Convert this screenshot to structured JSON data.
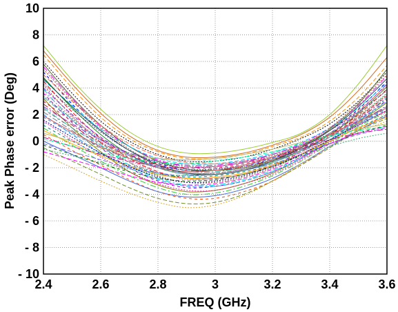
{
  "chart_data": {
    "type": "line",
    "title": "",
    "xlabel": "FREQ (GHz)",
    "ylabel": "Peak Phase error (Deg)",
    "xlim": [
      2.4,
      3.6
    ],
    "ylim": [
      -10,
      10
    ],
    "xticks": [
      "2.4",
      "2.6",
      "2.8",
      "3",
      "3.2",
      "3.4",
      "3.6"
    ],
    "yticks": [
      "10",
      "8",
      "6",
      "4",
      "2",
      "0",
      "- 2",
      "- 4",
      "- 6",
      "- 8",
      "- 10"
    ],
    "grid": "dotted",
    "legend": "none",
    "note": "approximately 50 overlapping unlabeled traces; values estimated",
    "x": [
      2.4,
      2.5,
      2.6,
      2.7,
      2.8,
      2.9,
      3.0,
      3.1,
      3.2,
      3.3,
      3.4,
      3.5,
      3.6
    ],
    "series": [
      {
        "color": "#9acd32",
        "values": [
          7.2,
          4.6,
          2.4,
          0.7,
          -0.4,
          -0.9,
          -0.9,
          -0.6,
          -0.1,
          0.6,
          2.0,
          4.3,
          7.2
        ]
      },
      {
        "color": "#ff8c00",
        "values": [
          6.5,
          4.0,
          1.8,
          0.2,
          -0.8,
          -1.3,
          -1.3,
          -1.0,
          -0.4,
          0.3,
          1.5,
          3.3,
          5.7
        ]
      },
      {
        "color": "#000000",
        "values": [
          6.0,
          3.6,
          1.5,
          0.0,
          -1.0,
          -1.5,
          -1.5,
          -1.2,
          -0.6,
          0.2,
          1.3,
          3.0,
          5.2
        ]
      },
      {
        "color": "#ff00ff",
        "values": [
          5.6,
          3.2,
          1.1,
          -0.4,
          -1.4,
          -1.9,
          -1.9,
          -1.6,
          -1.0,
          -0.2,
          1.0,
          2.7,
          4.9
        ]
      },
      {
        "color": "#0000cd",
        "values": [
          5.2,
          2.8,
          0.8,
          -0.7,
          -1.7,
          -2.2,
          -2.2,
          -1.9,
          -1.3,
          -0.4,
          0.8,
          2.4,
          4.5
        ]
      },
      {
        "color": "#228b22",
        "values": [
          4.8,
          2.5,
          0.5,
          -1.0,
          -2.0,
          -2.5,
          -2.5,
          -2.2,
          -1.6,
          -0.7,
          0.5,
          2.1,
          4.1
        ]
      },
      {
        "color": "#ff0000",
        "values": [
          4.5,
          2.2,
          0.2,
          -1.3,
          -2.3,
          -2.8,
          -2.8,
          -2.5,
          -1.8,
          -0.8,
          0.5,
          2.0,
          3.9
        ]
      },
      {
        "color": "#8b4513",
        "values": [
          4.2,
          1.9,
          -0.1,
          -1.6,
          -2.6,
          -3.1,
          -3.1,
          -2.7,
          -2.0,
          -1.0,
          0.3,
          1.8,
          3.5
        ]
      },
      {
        "color": "#00ced1",
        "values": [
          3.9,
          1.6,
          -0.3,
          -1.8,
          -2.8,
          -3.3,
          -3.3,
          -2.9,
          -2.2,
          -1.2,
          0.1,
          1.6,
          3.3
        ]
      },
      {
        "color": "#9400d3",
        "values": [
          3.6,
          1.4,
          -0.5,
          -2.0,
          -3.0,
          -3.5,
          -3.4,
          -3.0,
          -2.3,
          -1.3,
          0.0,
          1.5,
          3.1
        ]
      },
      {
        "color": "#808000",
        "values": [
          3.2,
          1.0,
          -0.8,
          -2.3,
          -3.3,
          -3.8,
          -3.7,
          -3.2,
          -2.4,
          -1.3,
          0.0,
          1.4,
          2.9
        ]
      },
      {
        "color": "#1e90ff",
        "values": [
          2.0,
          0.5,
          -0.9,
          -2.0,
          -2.9,
          -3.4,
          -3.4,
          -3.0,
          -2.3,
          -1.3,
          0.0,
          1.3,
          2.5
        ]
      },
      {
        "color": "#ff1493",
        "values": [
          1.5,
          0.1,
          -1.2,
          -2.3,
          -3.2,
          -3.7,
          -3.7,
          -3.2,
          -2.5,
          -1.4,
          -0.1,
          1.2,
          2.3
        ]
      },
      {
        "color": "#32cd32",
        "values": [
          1.0,
          -0.3,
          -1.5,
          -2.6,
          -3.5,
          -4.0,
          -3.9,
          -3.4,
          -2.6,
          -1.5,
          -0.2,
          1.1,
          2.2
        ]
      },
      {
        "color": "#ff4500",
        "values": [
          0.5,
          -0.7,
          -1.8,
          -2.9,
          -3.8,
          -4.3,
          -4.3,
          -3.8,
          -3.0,
          -1.8,
          -0.4,
          0.9,
          2.0
        ]
      },
      {
        "color": "#4169e1",
        "values": [
          0.0,
          -1.0,
          -2.0,
          -3.0,
          -3.8,
          -4.2,
          -4.1,
          -3.6,
          -2.8,
          -1.7,
          -0.4,
          0.8,
          1.9
        ]
      },
      {
        "color": "#6b8e23",
        "values": [
          -0.5,
          -1.5,
          -2.5,
          -3.5,
          -4.3,
          -4.7,
          -4.6,
          -4.0,
          -3.0,
          -1.8,
          -0.5,
          0.8,
          1.7
        ]
      },
      {
        "color": "#daa520",
        "values": [
          -1.0,
          -2.0,
          -3.0,
          -3.9,
          -4.6,
          -5.0,
          -4.8,
          -4.1,
          -3.0,
          -1.7,
          -0.4,
          0.7,
          1.5
        ]
      },
      {
        "color": "#20b2aa",
        "values": [
          2.5,
          1.0,
          -0.3,
          -1.3,
          -2.0,
          -2.3,
          -2.3,
          -2.0,
          -1.5,
          -0.7,
          0.3,
          1.5,
          3.0
        ]
      },
      {
        "color": "#dc143c",
        "values": [
          3.0,
          1.5,
          0.1,
          -1.0,
          -1.7,
          -2.0,
          -2.0,
          -1.7,
          -1.2,
          -0.5,
          0.5,
          1.8,
          3.4
        ]
      },
      {
        "color": "#556b2f",
        "values": [
          5.8,
          3.3,
          1.2,
          -0.4,
          -1.5,
          -2.1,
          -2.2,
          -2.0,
          -1.4,
          -0.5,
          0.9,
          2.8,
          5.4
        ]
      },
      {
        "color": "#8a2be2",
        "values": [
          4.0,
          2.0,
          0.3,
          -1.0,
          -1.9,
          -2.4,
          -2.4,
          -2.1,
          -1.5,
          -0.6,
          0.6,
          2.2,
          4.3
        ]
      },
      {
        "color": "#2e8b57",
        "values": [
          3.4,
          1.7,
          0.2,
          -0.9,
          -1.6,
          -1.9,
          -1.9,
          -1.6,
          -1.1,
          -0.4,
          0.6,
          1.9,
          3.6
        ]
      },
      {
        "color": "#b22222",
        "values": [
          2.8,
          1.2,
          -0.1,
          -1.1,
          -1.8,
          -2.2,
          -2.2,
          -1.9,
          -1.4,
          -0.6,
          0.4,
          1.7,
          3.2
        ]
      },
      {
        "color": "#4682b4",
        "values": [
          1.8,
          0.6,
          -0.5,
          -1.3,
          -1.9,
          -2.2,
          -2.1,
          -1.8,
          -1.3,
          -0.6,
          0.3,
          1.3,
          2.4
        ]
      },
      {
        "color": "#d2691e",
        "values": [
          6.8,
          4.3,
          2.1,
          0.4,
          -0.7,
          -1.2,
          -1.2,
          -0.9,
          -0.3,
          0.5,
          1.8,
          3.8,
          6.3
        ]
      },
      {
        "color": "#00bfff",
        "values": [
          4.6,
          2.7,
          0.9,
          -0.4,
          -1.3,
          -1.7,
          -1.7,
          -1.4,
          -0.9,
          -0.1,
          1.0,
          2.5,
          4.4
        ]
      },
      {
        "color": "#ff69b4",
        "values": [
          3.7,
          1.8,
          0.0,
          -1.4,
          -2.4,
          -2.9,
          -2.9,
          -2.5,
          -1.8,
          -0.9,
          0.3,
          1.7,
          3.4
        ]
      },
      {
        "color": "#708090",
        "values": [
          2.2,
          0.8,
          -0.5,
          -1.6,
          -2.4,
          -2.8,
          -2.8,
          -2.5,
          -1.9,
          -1.0,
          0.1,
          1.3,
          2.7
        ]
      },
      {
        "color": "#008080",
        "values": [
          1.2,
          0.0,
          -1.0,
          -1.8,
          -2.4,
          -2.7,
          -2.6,
          -2.3,
          -1.8,
          -1.0,
          0.0,
          1.0,
          2.0
        ]
      },
      {
        "color": "#ffa500",
        "values": [
          0.8,
          -0.2,
          -1.1,
          -1.9,
          -2.5,
          -2.8,
          -2.7,
          -2.4,
          -1.8,
          -1.0,
          0.0,
          1.0,
          1.8
        ]
      },
      {
        "color": "#7b68ee",
        "values": [
          -0.2,
          -0.8,
          -1.4,
          -2.0,
          -2.4,
          -2.6,
          -2.5,
          -2.2,
          -1.7,
          -1.0,
          -0.2,
          0.5,
          1.0
        ]
      },
      {
        "color": "#3cb371",
        "values": [
          -0.6,
          -1.1,
          -1.6,
          -2.1,
          -2.5,
          -2.6,
          -2.5,
          -2.2,
          -1.7,
          -1.1,
          -0.4,
          0.2,
          0.6
        ]
      },
      {
        "color": "#c71585",
        "values": [
          0.3,
          -0.4,
          -1.0,
          -1.5,
          -1.9,
          -2.0,
          -1.9,
          -1.6,
          -1.2,
          -0.6,
          0.1,
          0.6,
          0.9
        ]
      },
      {
        "color": "#87ceeb",
        "values": [
          1.4,
          0.5,
          -0.3,
          -0.9,
          -1.3,
          -1.5,
          -1.4,
          -1.2,
          -0.8,
          -0.3,
          0.3,
          0.9,
          1.3
        ]
      },
      {
        "color": "#bdb76b",
        "values": [
          0.6,
          0.0,
          -0.5,
          -1.0,
          -1.3,
          -1.4,
          -1.3,
          -1.0,
          -0.6,
          -0.1,
          0.4,
          0.9,
          1.3
        ]
      },
      {
        "color": "#ff6347",
        "values": [
          5.0,
          3.0,
          1.2,
          -0.2,
          -1.1,
          -1.6,
          -1.7,
          -1.5,
          -1.0,
          -0.3,
          0.8,
          2.3,
          4.2
        ]
      },
      {
        "color": "#483d8b",
        "values": [
          4.3,
          2.4,
          0.7,
          -0.7,
          -1.6,
          -2.1,
          -2.1,
          -1.8,
          -1.2,
          -0.3,
          0.8,
          2.2,
          3.8
        ]
      },
      {
        "color": "#9932cc",
        "values": [
          2.6,
          1.3,
          0.1,
          -0.9,
          -1.5,
          -1.8,
          -1.8,
          -1.5,
          -1.0,
          -0.3,
          0.5,
          1.5,
          2.6
        ]
      },
      {
        "color": "#006400",
        "values": [
          -0.3,
          -1.0,
          -1.7,
          -2.3,
          -2.8,
          -3.0,
          -2.9,
          -2.5,
          -1.9,
          -1.1,
          -0.2,
          0.6,
          1.2
        ]
      },
      {
        "color": "#cd5c5c",
        "values": [
          1.9,
          0.7,
          -0.4,
          -1.3,
          -2.0,
          -2.3,
          -2.2,
          -1.8,
          -1.2,
          -0.4,
          0.5,
          1.5,
          2.5
        ]
      },
      {
        "color": "#00fa9a",
        "values": [
          0.2,
          -0.4,
          -0.9,
          -1.3,
          -1.6,
          -1.7,
          -1.5,
          -1.2,
          -0.8,
          -0.2,
          0.4,
          0.8,
          1.1
        ]
      },
      {
        "color": "#a0522d",
        "values": [
          5.4,
          3.1,
          1.0,
          -0.6,
          -1.8,
          -2.4,
          -2.4,
          -2.1,
          -1.4,
          -0.4,
          1.0,
          2.9,
          5.0
        ]
      },
      {
        "color": "#6495ed",
        "values": [
          3.3,
          1.6,
          0.1,
          -1.1,
          -2.0,
          -2.5,
          -2.5,
          -2.2,
          -1.6,
          -0.8,
          0.3,
          1.6,
          3.0
        ]
      },
      {
        "color": "#808080",
        "values": [
          2.4,
          1.0,
          -0.2,
          -1.2,
          -2.0,
          -2.4,
          -2.4,
          -2.1,
          -1.5,
          -0.7,
          0.3,
          1.4,
          2.6
        ]
      },
      {
        "color": "#2f4f4f",
        "values": [
          4.7,
          2.6,
          0.8,
          -0.7,
          -1.8,
          -2.4,
          -2.5,
          -2.2,
          -1.5,
          -0.5,
          0.8,
          2.6,
          4.7
        ]
      },
      {
        "color": "#ff00ff",
        "values": [
          -0.8,
          -1.4,
          -2.0,
          -2.6,
          -3.1,
          -3.3,
          -3.2,
          -2.8,
          -2.1,
          -1.2,
          -0.2,
          0.6,
          1.1
        ]
      },
      {
        "color": "#000080",
        "values": [
          1.6,
          0.3,
          -0.9,
          -1.9,
          -2.7,
          -3.1,
          -3.0,
          -2.6,
          -1.9,
          -1.0,
          0.1,
          1.2,
          2.3
        ]
      }
    ]
  }
}
